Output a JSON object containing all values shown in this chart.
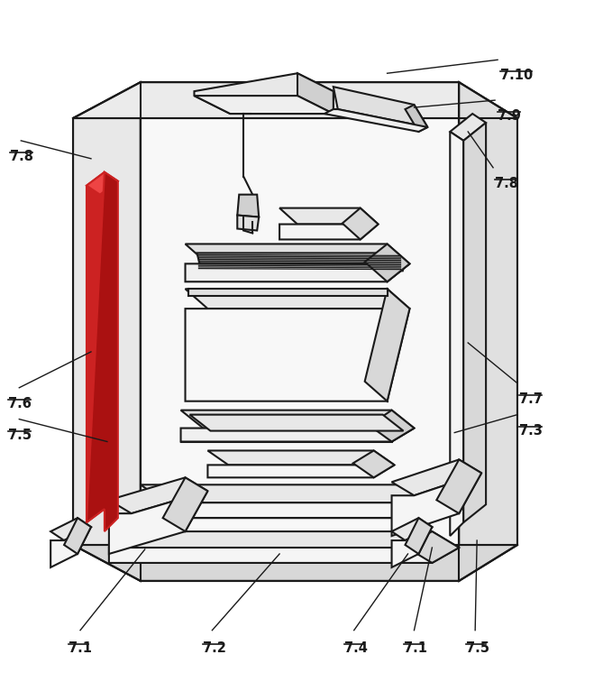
{
  "background_color": "#ffffff",
  "line_color": "#1a1a1a",
  "red_color": "#cc2222",
  "red_dark": "#991111",
  "red_light": "#dd4444",
  "gray_light": "#f0f0f0",
  "gray_mid": "#e0e0e0",
  "gray_dark": "#c8c8c8",
  "white": "#ffffff",
  "figsize": [
    6.59,
    7.46
  ],
  "dpi": 100
}
